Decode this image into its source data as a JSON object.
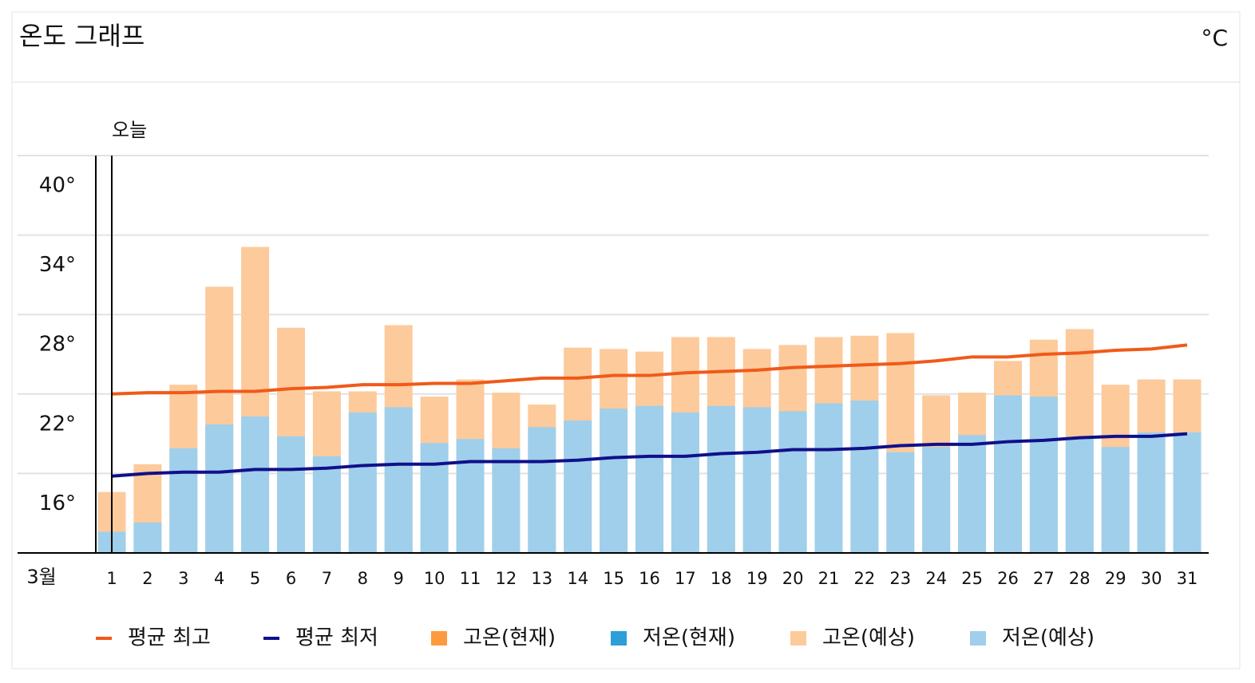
{
  "chart_data": {
    "type": "bar",
    "title": "온도 그래프",
    "unit_label": "°C",
    "today_label": "오늘",
    "month_label": "3월",
    "categories": [
      "1",
      "2",
      "3",
      "4",
      "5",
      "6",
      "7",
      "8",
      "9",
      "10",
      "11",
      "12",
      "13",
      "14",
      "15",
      "16",
      "17",
      "18",
      "19",
      "20",
      "21",
      "22",
      "23",
      "24",
      "25",
      "26",
      "27",
      "28",
      "29",
      "30",
      "31"
    ],
    "ylim": [
      10,
      40
    ],
    "yticks": [
      {
        "value": 40,
        "label": "40°"
      },
      {
        "value": 34,
        "label": "34°"
      },
      {
        "value": 28,
        "label": "28°"
      },
      {
        "value": 22,
        "label": "22°"
      },
      {
        "value": 16,
        "label": "16°"
      }
    ],
    "grid": true,
    "series": [
      {
        "name": "평균 최고",
        "type": "line",
        "color": "#f05a1a",
        "values": [
          22.0,
          22.1,
          22.1,
          22.2,
          22.2,
          22.4,
          22.5,
          22.7,
          22.7,
          22.8,
          22.8,
          23.0,
          23.2,
          23.2,
          23.4,
          23.4,
          23.6,
          23.7,
          23.8,
          24.0,
          24.1,
          24.2,
          24.3,
          24.5,
          24.8,
          24.8,
          25.0,
          25.1,
          25.3,
          25.4,
          25.7
        ]
      },
      {
        "name": "평균 최저",
        "type": "line",
        "color": "#10108a",
        "values": [
          15.8,
          16.0,
          16.1,
          16.1,
          16.3,
          16.3,
          16.4,
          16.6,
          16.7,
          16.7,
          16.9,
          16.9,
          16.9,
          17.0,
          17.2,
          17.3,
          17.3,
          17.5,
          17.6,
          17.8,
          17.8,
          17.9,
          18.1,
          18.2,
          18.2,
          18.4,
          18.5,
          18.7,
          18.8,
          18.8,
          19.0
        ]
      },
      {
        "name": "고온(현재)",
        "type": "bar",
        "color": "#fd9a3d",
        "values": [
          null,
          null,
          null,
          null,
          null,
          null,
          null,
          null,
          null,
          null,
          null,
          null,
          null,
          null,
          null,
          null,
          null,
          null,
          null,
          null,
          null,
          null,
          null,
          null,
          null,
          null,
          null,
          null,
          null,
          null,
          null
        ]
      },
      {
        "name": "저온(현재)",
        "type": "bar",
        "color": "#2a9fd8",
        "values": [
          null,
          null,
          null,
          null,
          null,
          null,
          null,
          null,
          null,
          null,
          null,
          null,
          null,
          null,
          null,
          null,
          null,
          null,
          null,
          null,
          null,
          null,
          null,
          null,
          null,
          null,
          null,
          null,
          null,
          null,
          null
        ]
      },
      {
        "name": "고온(예상)",
        "type": "bar",
        "color": "#fdca9b",
        "values": [
          14.6,
          16.7,
          22.7,
          30.1,
          33.1,
          27.0,
          22.2,
          22.2,
          27.2,
          21.8,
          23.1,
          22.1,
          21.2,
          25.5,
          25.4,
          25.2,
          26.3,
          26.3,
          25.4,
          25.7,
          26.3,
          26.4,
          26.6,
          21.9,
          22.1,
          24.5,
          26.1,
          26.9,
          22.7,
          23.1,
          23.1
        ]
      },
      {
        "name": "저온(예상)",
        "type": "bar",
        "color": "#9fcfeb",
        "values": [
          11.6,
          12.3,
          17.9,
          19.7,
          20.3,
          18.8,
          17.3,
          20.6,
          21.0,
          18.3,
          18.6,
          17.9,
          19.5,
          20.0,
          20.9,
          21.1,
          20.6,
          21.1,
          21.0,
          20.7,
          21.3,
          21.5,
          17.6,
          18.0,
          18.9,
          21.9,
          21.8,
          18.7,
          18.0,
          19.1,
          19.1
        ]
      }
    ]
  }
}
